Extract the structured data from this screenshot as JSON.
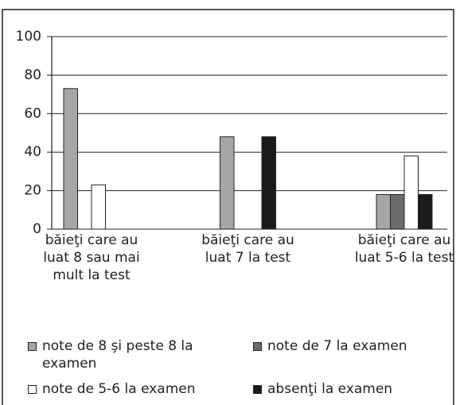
{
  "chart_data": {
    "type": "bar",
    "categories": [
      "băieţi care au luat 8 sau mai mult la test",
      "băieţi care au luat 7 la test",
      "băieţi care au luat 5-6 la test"
    ],
    "series": [
      {
        "name": "note de 8 şi peste 8 la examen",
        "color": "#a6a6a6",
        "values": [
          73,
          48,
          18
        ]
      },
      {
        "name": "note de 7 la examen",
        "color": "#6b6b6b",
        "values": [
          0,
          0,
          18
        ]
      },
      {
        "name": "note de 5-6 la examen",
        "color": "#ffffff",
        "values": [
          23,
          0,
          38
        ]
      },
      {
        "name": "absenţi la examen",
        "color": "#1a1a1a",
        "values": [
          0,
          48,
          18
        ]
      }
    ],
    "ylim": [
      0,
      100
    ],
    "yticks": [
      0,
      20,
      40,
      60,
      80,
      100
    ],
    "grid": true,
    "legend": "bottom"
  }
}
